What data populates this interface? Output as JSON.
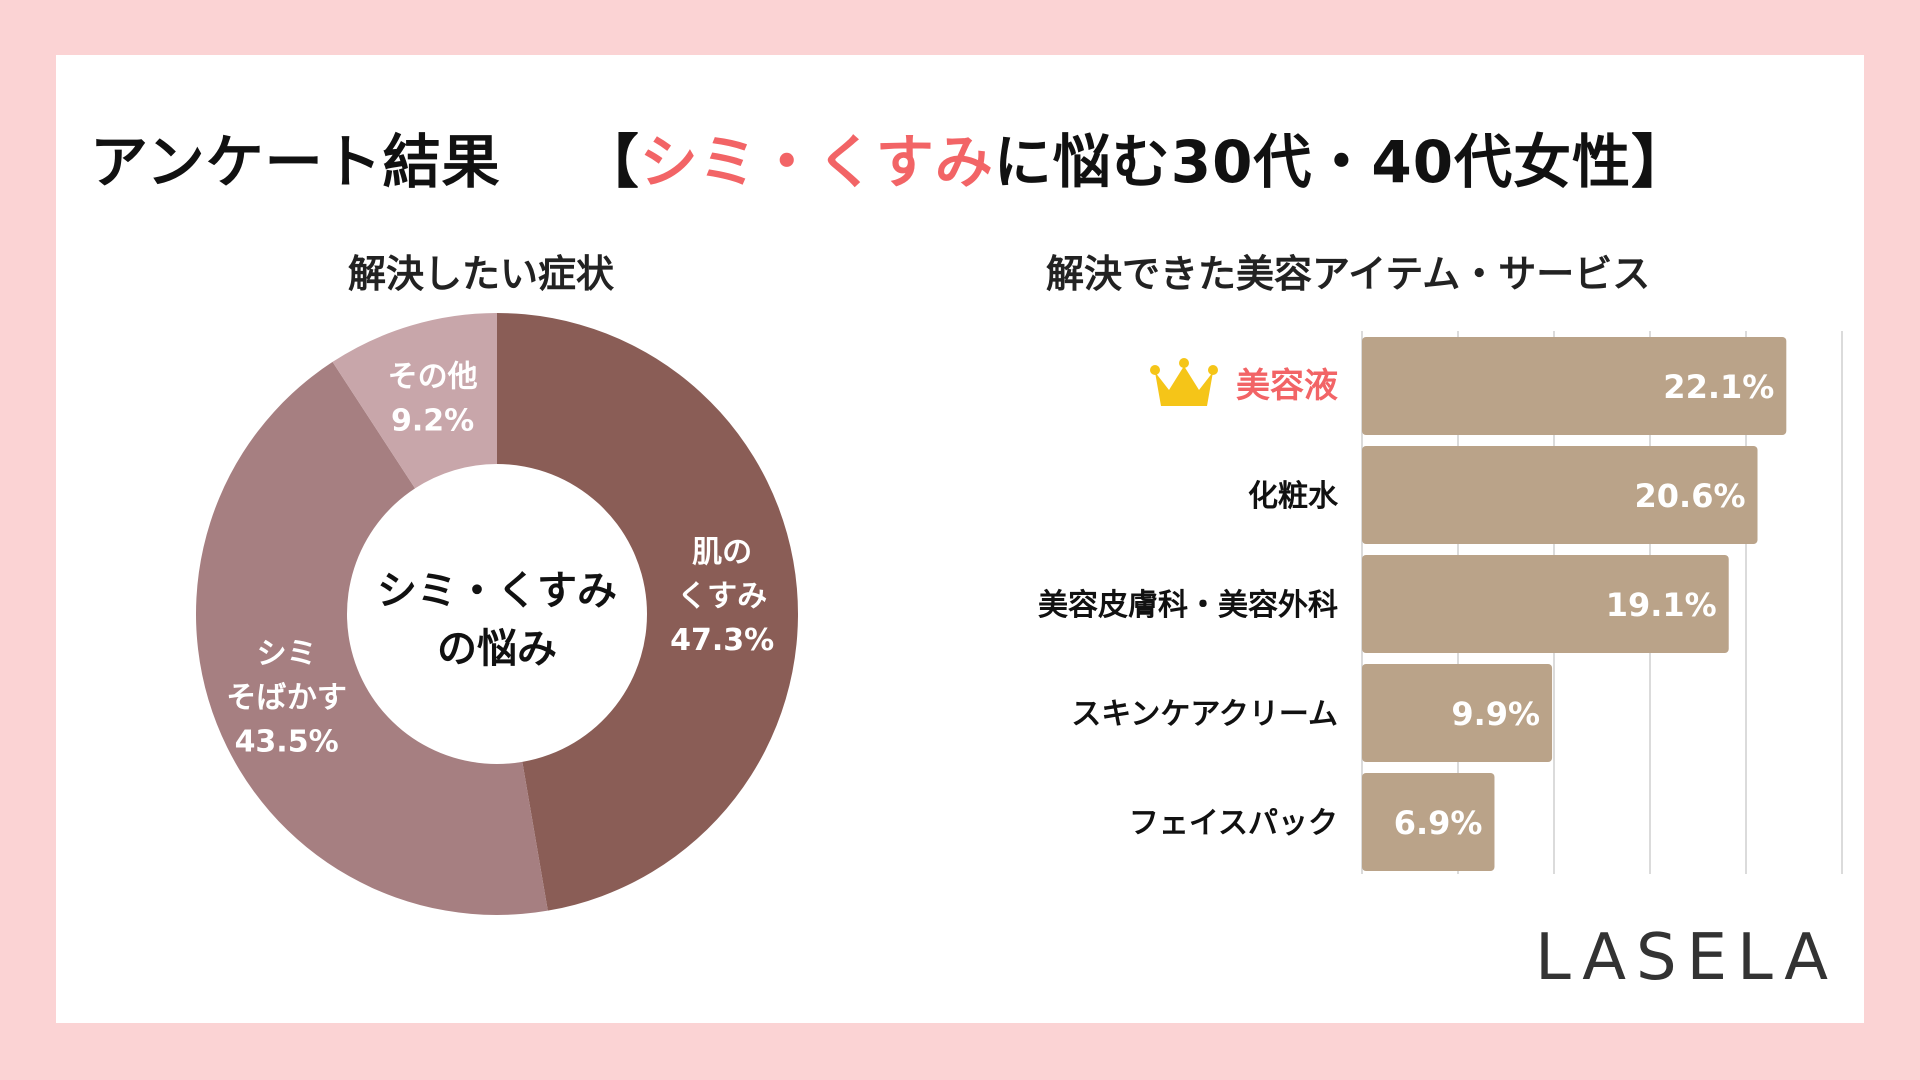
{
  "page": {
    "title_main": "アンケート結果",
    "title_bracket_open": "【",
    "title_highlight": "シミ・くすみ",
    "title_rest": "に悩む30代・40代女性",
    "title_bracket_close": "】",
    "logo": "LASELA",
    "colors": {
      "background": "#fbd3d4",
      "highlight": "#f26466",
      "bar": "#baa389"
    }
  },
  "chart_data": [
    {
      "type": "pie",
      "variant": "donut",
      "title": "解決したい症状",
      "center_label": [
        "シミ・くすみ",
        "の悩み"
      ],
      "slices": [
        {
          "label": [
            "肌の",
            "くすみ"
          ],
          "value": 47.3,
          "value_label": "47.3%",
          "color": "#8a5d56"
        },
        {
          "label": [
            "シミ",
            "そばかす"
          ],
          "value": 43.5,
          "value_label": "43.5%",
          "color": "#a67f81"
        },
        {
          "label": [
            "その他"
          ],
          "value": 9.2,
          "value_label": "9.2%",
          "color": "#c8a6aa"
        }
      ]
    },
    {
      "type": "bar",
      "orientation": "horizontal",
      "title": "解決できた美容アイテム・サービス",
      "categories": [
        "美容液",
        "化粧水",
        "美容皮膚科・美容外科",
        "スキンケアクリーム",
        "フェイスパック"
      ],
      "values": [
        22.1,
        20.6,
        19.1,
        9.9,
        6.9
      ],
      "value_labels": [
        "22.1%",
        "20.6%",
        "19.1%",
        "9.9%",
        "6.9%"
      ],
      "highlight_index": 0,
      "highlight_icon": "crown-icon",
      "xlim": [
        0,
        25
      ],
      "grid": true
    }
  ]
}
